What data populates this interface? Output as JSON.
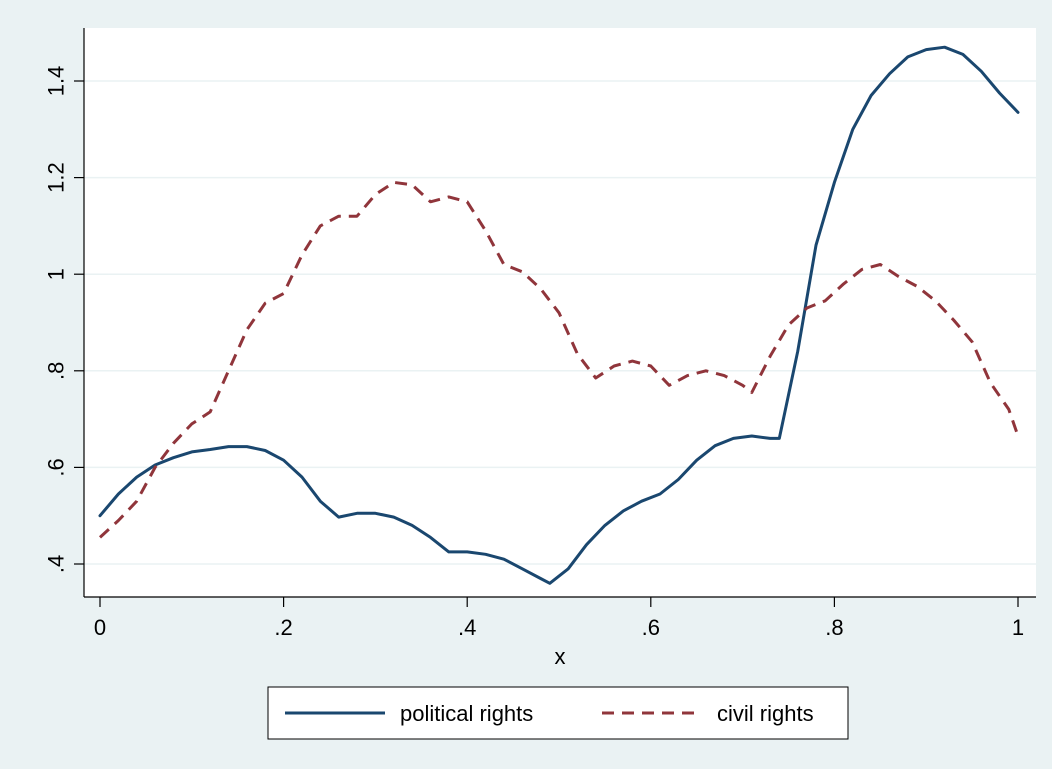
{
  "chart_data": {
    "type": "line",
    "title": "",
    "xlabel": "x",
    "ylabel": "",
    "xlim": [
      0,
      1
    ],
    "ylim": [
      0.35,
      1.5
    ],
    "xticks": [
      {
        "value": 0,
        "label": "0"
      },
      {
        "value": 0.2,
        "label": ".2"
      },
      {
        "value": 0.4,
        "label": ".4"
      },
      {
        "value": 0.6,
        "label": ".6"
      },
      {
        "value": 0.8,
        "label": ".8"
      },
      {
        "value": 1,
        "label": "1"
      }
    ],
    "yticks": [
      {
        "value": 0.4,
        "label": ".4"
      },
      {
        "value": 0.6,
        "label": ".6"
      },
      {
        "value": 0.8,
        "label": ".8"
      },
      {
        "value": 1.0,
        "label": "1"
      },
      {
        "value": 1.2,
        "label": "1.2"
      },
      {
        "value": 1.4,
        "label": "1.4"
      }
    ],
    "grid": "horizontal",
    "legend_position": "bottom",
    "series": [
      {
        "name": "political rights",
        "color": "#1a476f",
        "dash": "solid",
        "x": [
          0,
          0.02,
          0.04,
          0.06,
          0.08,
          0.1,
          0.12,
          0.14,
          0.16,
          0.18,
          0.2,
          0.22,
          0.24,
          0.26,
          0.28,
          0.3,
          0.32,
          0.34,
          0.36,
          0.38,
          0.4,
          0.42,
          0.44,
          0.46,
          0.48,
          0.49,
          0.51,
          0.53,
          0.55,
          0.57,
          0.59,
          0.61,
          0.63,
          0.65,
          0.67,
          0.69,
          0.71,
          0.73,
          0.74,
          0.76,
          0.78,
          0.8,
          0.82,
          0.84,
          0.86,
          0.88,
          0.9,
          0.92,
          0.94,
          0.96,
          0.98,
          1.0
        ],
        "y": [
          0.5,
          0.545,
          0.58,
          0.605,
          0.62,
          0.632,
          0.637,
          0.643,
          0.643,
          0.635,
          0.615,
          0.58,
          0.53,
          0.497,
          0.505,
          0.505,
          0.497,
          0.48,
          0.455,
          0.425,
          0.425,
          0.42,
          0.41,
          0.39,
          0.37,
          0.36,
          0.39,
          0.44,
          0.48,
          0.51,
          0.53,
          0.545,
          0.575,
          0.615,
          0.645,
          0.66,
          0.665,
          0.66,
          0.66,
          0.84,
          1.06,
          1.19,
          1.3,
          1.37,
          1.415,
          1.45,
          1.465,
          1.47,
          1.455,
          1.42,
          1.375,
          1.335
        ]
      },
      {
        "name": "civil rights",
        "color": "#90353b",
        "dash": "dashed",
        "x": [
          0,
          0.02,
          0.04,
          0.06,
          0.08,
          0.1,
          0.12,
          0.14,
          0.16,
          0.18,
          0.2,
          0.22,
          0.24,
          0.26,
          0.28,
          0.3,
          0.32,
          0.34,
          0.36,
          0.38,
          0.4,
          0.42,
          0.44,
          0.46,
          0.48,
          0.5,
          0.52,
          0.54,
          0.56,
          0.58,
          0.6,
          0.62,
          0.64,
          0.66,
          0.68,
          0.7,
          0.71,
          0.73,
          0.75,
          0.77,
          0.79,
          0.81,
          0.83,
          0.85,
          0.87,
          0.89,
          0.91,
          0.93,
          0.95,
          0.97,
          0.99,
          1.0
        ],
        "y": [
          0.455,
          0.49,
          0.53,
          0.6,
          0.65,
          0.69,
          0.715,
          0.8,
          0.885,
          0.94,
          0.96,
          1.04,
          1.1,
          1.12,
          1.12,
          1.165,
          1.19,
          1.185,
          1.15,
          1.16,
          1.15,
          1.09,
          1.02,
          1.005,
          0.97,
          0.92,
          0.835,
          0.785,
          0.81,
          0.82,
          0.81,
          0.77,
          0.79,
          0.8,
          0.79,
          0.77,
          0.755,
          0.83,
          0.895,
          0.93,
          0.945,
          0.98,
          1.01,
          1.02,
          0.995,
          0.975,
          0.945,
          0.905,
          0.86,
          0.775,
          0.72,
          0.665
        ]
      }
    ]
  }
}
